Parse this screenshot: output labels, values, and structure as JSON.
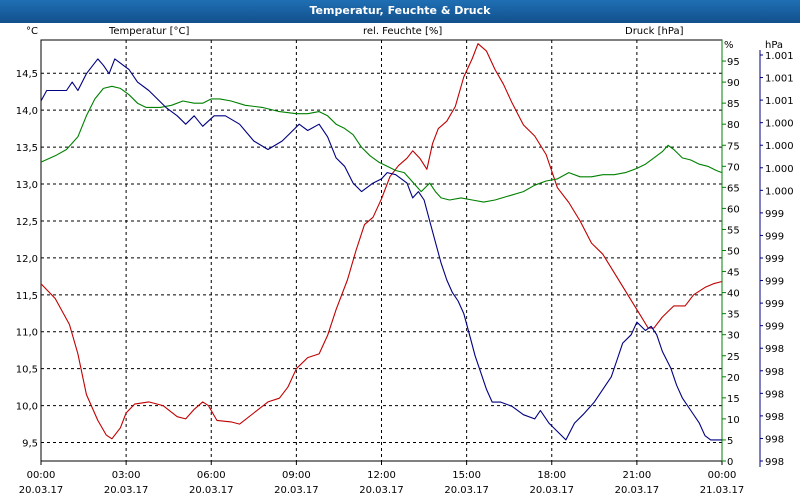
{
  "window": {
    "title": "Temperatur, Feuchte & Druck"
  },
  "chart_data": {
    "type": "line",
    "title": "Temperatur, Feuchte & Druck",
    "x": {
      "range_hours": [
        0,
        24
      ],
      "ticks": [
        {
          "time": "00:00",
          "date": "20.03.17"
        },
        {
          "time": "03:00",
          "date": "20.03.17"
        },
        {
          "time": "06:00",
          "date": "20.03.17"
        },
        {
          "time": "09:00",
          "date": "20.03.17"
        },
        {
          "time": "12:00",
          "date": "20.03.17"
        },
        {
          "time": "15:00",
          "date": "20.03.17"
        },
        {
          "time": "18:00",
          "date": "20.03.17"
        },
        {
          "time": "21:00",
          "date": "20.03.17"
        },
        {
          "time": "00:00",
          "date": "21.03.17"
        }
      ]
    },
    "axes": {
      "temperature": {
        "label": "Temperatur [°C]",
        "unit": "°C",
        "color": "#c00000",
        "ylim": [
          9.25,
          14.95
        ],
        "ticks": [
          "9,5",
          "10,0",
          "10,5",
          "11,0",
          "11,5",
          "12,0",
          "12,5",
          "13,0",
          "13,5",
          "14,0",
          "14,5"
        ]
      },
      "humidity": {
        "label": "rel. Feuchte [%]",
        "unit": "%",
        "color": "#008000",
        "ylim": [
          0,
          100
        ],
        "ticks": [
          "0",
          "5",
          "10",
          "15",
          "20",
          "25",
          "30",
          "35",
          "40",
          "45",
          "50",
          "55",
          "60",
          "65",
          "70",
          "75",
          "80",
          "85",
          "90",
          "95"
        ]
      },
      "pressure": {
        "label": "Druck [hPa]",
        "unit": "hPa",
        "color": "#000080",
        "ticks": [
          "998",
          "998",
          "998",
          "998",
          "998",
          "998",
          "999",
          "999",
          "999",
          "999",
          "999",
          "999",
          "1.000",
          "1.000",
          "1.000",
          "1.000",
          "1.001",
          "1.001",
          "1.001"
        ]
      }
    },
    "series": [
      {
        "name": "Temperatur",
        "axis": "temperature",
        "color": "#c00000",
        "points": [
          [
            0,
            11.65
          ],
          [
            0.5,
            11.45
          ],
          [
            1,
            11.1
          ],
          [
            1.3,
            10.7
          ],
          [
            1.6,
            10.15
          ],
          [
            2,
            9.8
          ],
          [
            2.3,
            9.6
          ],
          [
            2.5,
            9.55
          ],
          [
            2.8,
            9.7
          ],
          [
            3,
            9.9
          ],
          [
            3.3,
            10.02
          ],
          [
            3.8,
            10.05
          ],
          [
            4.3,
            10.0
          ],
          [
            4.8,
            9.85
          ],
          [
            5.1,
            9.82
          ],
          [
            5.4,
            9.95
          ],
          [
            5.7,
            10.05
          ],
          [
            5.9,
            10.0
          ],
          [
            6.2,
            9.8
          ],
          [
            6.7,
            9.78
          ],
          [
            7,
            9.75
          ],
          [
            7.5,
            9.9
          ],
          [
            8,
            10.05
          ],
          [
            8.4,
            10.1
          ],
          [
            8.7,
            10.25
          ],
          [
            9,
            10.5
          ],
          [
            9.4,
            10.65
          ],
          [
            9.8,
            10.7
          ],
          [
            10.1,
            10.95
          ],
          [
            10.4,
            11.3
          ],
          [
            10.8,
            11.7
          ],
          [
            11.1,
            12.1
          ],
          [
            11.4,
            12.45
          ],
          [
            11.7,
            12.55
          ],
          [
            12,
            12.8
          ],
          [
            12.3,
            13.1
          ],
          [
            12.6,
            13.25
          ],
          [
            12.9,
            13.35
          ],
          [
            13.1,
            13.45
          ],
          [
            13.35,
            13.35
          ],
          [
            13.6,
            13.2
          ],
          [
            13.8,
            13.55
          ],
          [
            14,
            13.75
          ],
          [
            14.3,
            13.85
          ],
          [
            14.6,
            14.05
          ],
          [
            14.9,
            14.45
          ],
          [
            15.2,
            14.7
          ],
          [
            15.4,
            14.9
          ],
          [
            15.7,
            14.8
          ],
          [
            16,
            14.55
          ],
          [
            16.3,
            14.35
          ],
          [
            16.6,
            14.1
          ],
          [
            17,
            13.8
          ],
          [
            17.4,
            13.65
          ],
          [
            17.8,
            13.4
          ],
          [
            18.2,
            12.95
          ],
          [
            18.6,
            12.75
          ],
          [
            19,
            12.5
          ],
          [
            19.4,
            12.2
          ],
          [
            19.8,
            12.05
          ],
          [
            20.2,
            11.8
          ],
          [
            20.6,
            11.55
          ],
          [
            21,
            11.3
          ],
          [
            21.4,
            11.05
          ],
          [
            21.6,
            11.05
          ],
          [
            21.9,
            11.2
          ],
          [
            22.3,
            11.35
          ],
          [
            22.7,
            11.35
          ],
          [
            23,
            11.5
          ],
          [
            23.4,
            11.6
          ],
          [
            23.7,
            11.65
          ],
          [
            24,
            11.68
          ]
        ]
      },
      {
        "name": "rel. Feuchte",
        "axis": "humidity",
        "color": "#008000",
        "points": [
          [
            0,
            71
          ],
          [
            0.5,
            72.5
          ],
          [
            0.9,
            74
          ],
          [
            1.3,
            77
          ],
          [
            1.6,
            82
          ],
          [
            1.9,
            86
          ],
          [
            2.2,
            88.5
          ],
          [
            2.5,
            89
          ],
          [
            2.8,
            88.5
          ],
          [
            3.1,
            87
          ],
          [
            3.4,
            85
          ],
          [
            3.7,
            84
          ],
          [
            4.2,
            84
          ],
          [
            4.6,
            84.5
          ],
          [
            5,
            85.5
          ],
          [
            5.4,
            85
          ],
          [
            5.7,
            85
          ],
          [
            6,
            86
          ],
          [
            6.3,
            86
          ],
          [
            6.7,
            85.5
          ],
          [
            7.2,
            84.5
          ],
          [
            7.8,
            84
          ],
          [
            8.4,
            83
          ],
          [
            9,
            82.5
          ],
          [
            9.4,
            82.5
          ],
          [
            9.8,
            83
          ],
          [
            10.1,
            82
          ],
          [
            10.4,
            80
          ],
          [
            10.7,
            79
          ],
          [
            11,
            77.5
          ],
          [
            11.3,
            74.5
          ],
          [
            11.6,
            72.5
          ],
          [
            11.9,
            71
          ],
          [
            12.2,
            70
          ],
          [
            12.5,
            69
          ],
          [
            12.8,
            68.5
          ],
          [
            13,
            67
          ],
          [
            13.2,
            65.5
          ],
          [
            13.4,
            64
          ],
          [
            13.7,
            66
          ],
          [
            13.9,
            64
          ],
          [
            14.1,
            62.5
          ],
          [
            14.4,
            62
          ],
          [
            14.8,
            62.5
          ],
          [
            15.2,
            62
          ],
          [
            15.6,
            61.5
          ],
          [
            16,
            62
          ],
          [
            16.5,
            63
          ],
          [
            17,
            64
          ],
          [
            17.4,
            65.5
          ],
          [
            17.8,
            66.5
          ],
          [
            18.2,
            67
          ],
          [
            18.6,
            68.5
          ],
          [
            19,
            67.5
          ],
          [
            19.4,
            67.5
          ],
          [
            19.8,
            68
          ],
          [
            20.2,
            68
          ],
          [
            20.6,
            68.5
          ],
          [
            21,
            69.5
          ],
          [
            21.3,
            70.5
          ],
          [
            21.6,
            72
          ],
          [
            21.9,
            73.5
          ],
          [
            22.1,
            75
          ],
          [
            22.3,
            74
          ],
          [
            22.6,
            72
          ],
          [
            22.9,
            71.5
          ],
          [
            23.2,
            70.5
          ],
          [
            23.5,
            70
          ],
          [
            23.8,
            69
          ],
          [
            24,
            68.5
          ]
        ]
      },
      {
        "name": "Druck",
        "axis": "pressure",
        "color": "#000080",
        "points": [
          [
            0,
            85.5
          ],
          [
            0.2,
            88
          ],
          [
            0.9,
            88
          ],
          [
            1.1,
            90
          ],
          [
            1.3,
            88
          ],
          [
            1.6,
            92
          ],
          [
            2.0,
            95.5
          ],
          [
            2.2,
            94
          ],
          [
            2.4,
            92
          ],
          [
            2.6,
            95.5
          ],
          [
            3.1,
            93
          ],
          [
            3.4,
            90
          ],
          [
            3.8,
            88
          ],
          [
            4.1,
            86
          ],
          [
            4.4,
            84
          ],
          [
            4.8,
            82
          ],
          [
            5.1,
            80
          ],
          [
            5.4,
            82
          ],
          [
            5.7,
            79.5
          ],
          [
            6.1,
            82
          ],
          [
            6.5,
            82
          ],
          [
            7.0,
            80
          ],
          [
            7.5,
            76
          ],
          [
            8.0,
            74
          ],
          [
            8.5,
            76
          ],
          [
            8.8,
            78
          ],
          [
            9.1,
            80
          ],
          [
            9.4,
            78.5
          ],
          [
            9.8,
            80
          ],
          [
            10.1,
            77
          ],
          [
            10.4,
            72
          ],
          [
            10.7,
            70
          ],
          [
            11,
            66
          ],
          [
            11.3,
            64
          ],
          [
            11.7,
            66
          ],
          [
            12,
            67
          ],
          [
            12.2,
            68.5
          ],
          [
            12.5,
            68
          ],
          [
            12.9,
            66
          ],
          [
            13.1,
            62.5
          ],
          [
            13.3,
            64
          ],
          [
            13.5,
            62
          ],
          [
            13.7,
            57
          ],
          [
            13.9,
            52
          ],
          [
            14.1,
            47
          ],
          [
            14.3,
            43
          ],
          [
            14.5,
            40
          ],
          [
            14.7,
            38
          ],
          [
            14.9,
            35
          ],
          [
            15.1,
            30
          ],
          [
            15.3,
            25
          ],
          [
            15.5,
            21
          ],
          [
            15.7,
            17
          ],
          [
            15.9,
            14
          ],
          [
            16.2,
            14
          ],
          [
            16.6,
            13
          ],
          [
            17,
            11
          ],
          [
            17.4,
            10
          ],
          [
            17.6,
            12
          ],
          [
            17.9,
            9
          ],
          [
            18.2,
            7
          ],
          [
            18.5,
            5
          ],
          [
            18.8,
            9
          ],
          [
            19.1,
            11
          ],
          [
            19.5,
            14
          ],
          [
            19.8,
            17
          ],
          [
            20.1,
            20
          ],
          [
            20.3,
            24
          ],
          [
            20.5,
            28
          ],
          [
            20.8,
            30
          ],
          [
            21,
            33
          ],
          [
            21.3,
            31
          ],
          [
            21.5,
            32
          ],
          [
            21.7,
            30
          ],
          [
            21.9,
            26
          ],
          [
            22.2,
            22
          ],
          [
            22.4,
            18
          ],
          [
            22.6,
            15
          ],
          [
            22.9,
            12
          ],
          [
            23.2,
            9
          ],
          [
            23.4,
            6
          ],
          [
            23.6,
            5
          ],
          [
            23.9,
            5
          ],
          [
            24,
            5
          ]
        ]
      }
    ]
  }
}
